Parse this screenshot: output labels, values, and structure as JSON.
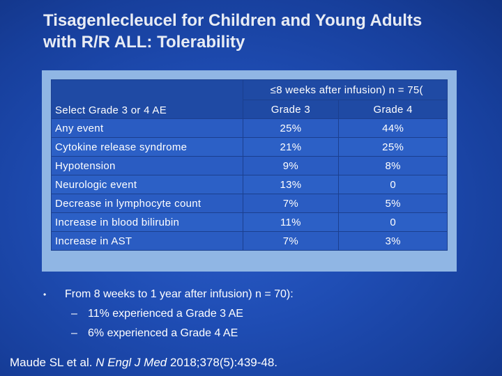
{
  "slide": {
    "title_line1": "Tisagenlecleucel for Children and Young Adults",
    "title_line2": "with R/R ALL: Tolerability"
  },
  "table": {
    "row_header": "Select Grade 3 or 4 AE",
    "group_header": "≤8 weeks after infusion) n = 75(",
    "col_grade3": "Grade 3",
    "col_grade4": "Grade 4",
    "rows": [
      {
        "ae": "Any event",
        "g3": "25%",
        "g4": "44%"
      },
      {
        "ae": "Cytokine release syndrome",
        "g3": "21%",
        "g4": "25%"
      },
      {
        "ae": "Hypotension",
        "g3": "9%",
        "g4": "8%"
      },
      {
        "ae": "Neurologic event",
        "g3": "13%",
        "g4": "0"
      },
      {
        "ae": "Decrease in lymphocyte count",
        "g3": "7%",
        "g4": "5%"
      },
      {
        "ae": "Increase in blood bilirubin",
        "g3": "11%",
        "g4": "0"
      },
      {
        "ae": "Increase in AST",
        "g3": "7%",
        "g4": "3%"
      }
    ]
  },
  "bullets": {
    "marker": "•",
    "main": "From 8 weeks to 1 year after infusion) n = 70):",
    "sub_marker": "–",
    "sub": [
      "11% experienced a Grade 3 AE",
      "6% experienced a Grade 4 AE"
    ]
  },
  "citation": {
    "authors": "Maude SL et al.",
    "journal": "N Engl J Med",
    "details": "2018;378(5):439-48."
  }
}
